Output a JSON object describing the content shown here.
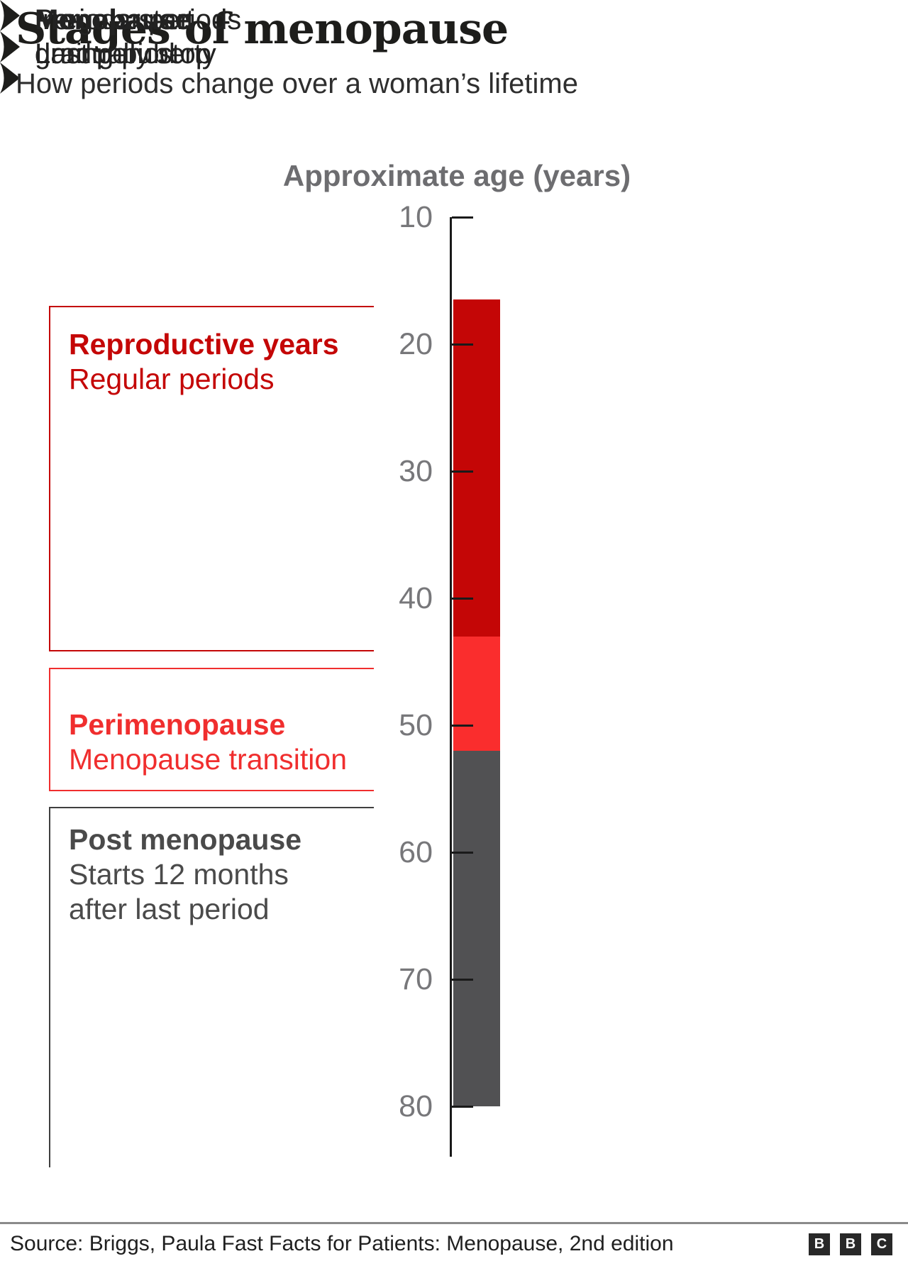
{
  "header": {
    "title": "Stages of menopause",
    "subtitle": "How periods change over a woman’s lifetime"
  },
  "chart_data": {
    "type": "bar",
    "title": "Approximate age (years)",
    "orientation": "vertical-timeline",
    "axis": {
      "label": "Approximate age (years)",
      "unit": "years",
      "min": 10,
      "max": 80,
      "ticks": [
        10,
        20,
        30,
        40,
        50,
        60,
        70,
        80
      ],
      "tick_label_color": "#77777a",
      "line_color": "#1a1a1a"
    },
    "segments": [
      {
        "name": "Reproductive years",
        "from_age": 16.5,
        "to_age": 43,
        "color": "#c40606"
      },
      {
        "name": "Perimenopause",
        "from_age": 43,
        "to_age": 52,
        "color": "#fa2d2d"
      },
      {
        "name": "Post menopause",
        "from_age": 52,
        "to_age": 80,
        "color": "#515153"
      }
    ],
    "annotations": [
      {
        "approx_age": 12,
        "lines": [
          {
            "text": "Periods start",
            "bold": false
          },
          {
            "text": "during puberty",
            "bold": false
          }
        ]
      },
      {
        "approx_age": 45.7,
        "lines": [
          {
            "text": "Irregular periods",
            "bold": false
          },
          {
            "text": "gradually stop",
            "bold": false
          }
        ]
      },
      {
        "approx_age": 52.3,
        "lines": [
          {
            "text": "Menopause",
            "bold": true
          },
          {
            "text": "Last period",
            "bold": false
          }
        ]
      }
    ],
    "stage_labels": [
      {
        "label": "Reproductive years",
        "sublabel_lines": [
          "Regular periods"
        ],
        "text_color": "#c40606",
        "border_color": "#c40606",
        "bracket_from_age": 17.0,
        "bracket_to_age": 44.2,
        "open_bottom": false
      },
      {
        "label": "Perimenopause",
        "sublabel_lines": [
          "Menopause transition"
        ],
        "text_color": "#f02e2e",
        "border_color": "#f02e2e",
        "bracket_from_age": 45.5,
        "bracket_to_age": 55.2,
        "open_bottom": false
      },
      {
        "label": "Post menopause",
        "sublabel_lines": [
          "Starts 12 months",
          "after last period"
        ],
        "text_color": "#4a4a4a",
        "border_color": "#3f3f3f",
        "bracket_from_age": 56.4,
        "bracket_to_age": 84.8,
        "open_bottom": true
      }
    ]
  },
  "footer": {
    "source": "Source: Briggs, Paula Fast Facts for Patients: Menopause, 2nd edition",
    "logo_blocks": [
      "B",
      "B",
      "C"
    ]
  }
}
